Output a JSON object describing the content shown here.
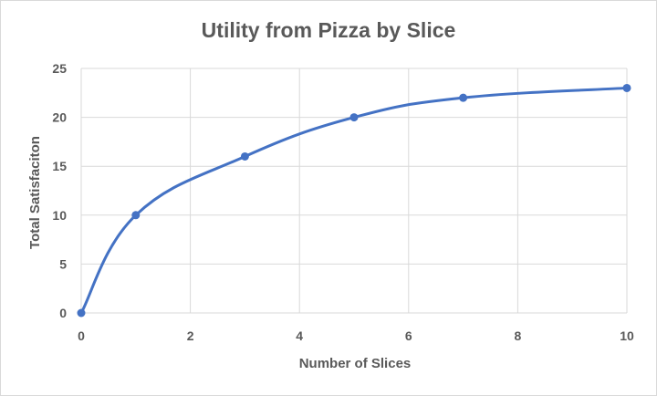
{
  "chart_data": {
    "type": "scatter",
    "title": "Utility from Pizza by Slice",
    "xlabel": "Number of Slices",
    "ylabel": "Total Satisfaciton",
    "xlim": [
      0,
      10
    ],
    "ylim": [
      0,
      25
    ],
    "x_ticks": [
      "0",
      "2",
      "4",
      "6",
      "8",
      "10"
    ],
    "y_ticks": [
      "0",
      "5",
      "10",
      "15",
      "20",
      "25"
    ],
    "grid": true,
    "legend": "none",
    "series_color": "#4472c4",
    "series": [
      {
        "points": [
          {
            "x": 0,
            "y": 0
          },
          {
            "x": 1,
            "y": 10
          },
          {
            "x": 3,
            "y": 16
          },
          {
            "x": 5,
            "y": 20
          },
          {
            "x": 7,
            "y": 22
          },
          {
            "x": 10,
            "y": 23
          }
        ]
      }
    ]
  }
}
